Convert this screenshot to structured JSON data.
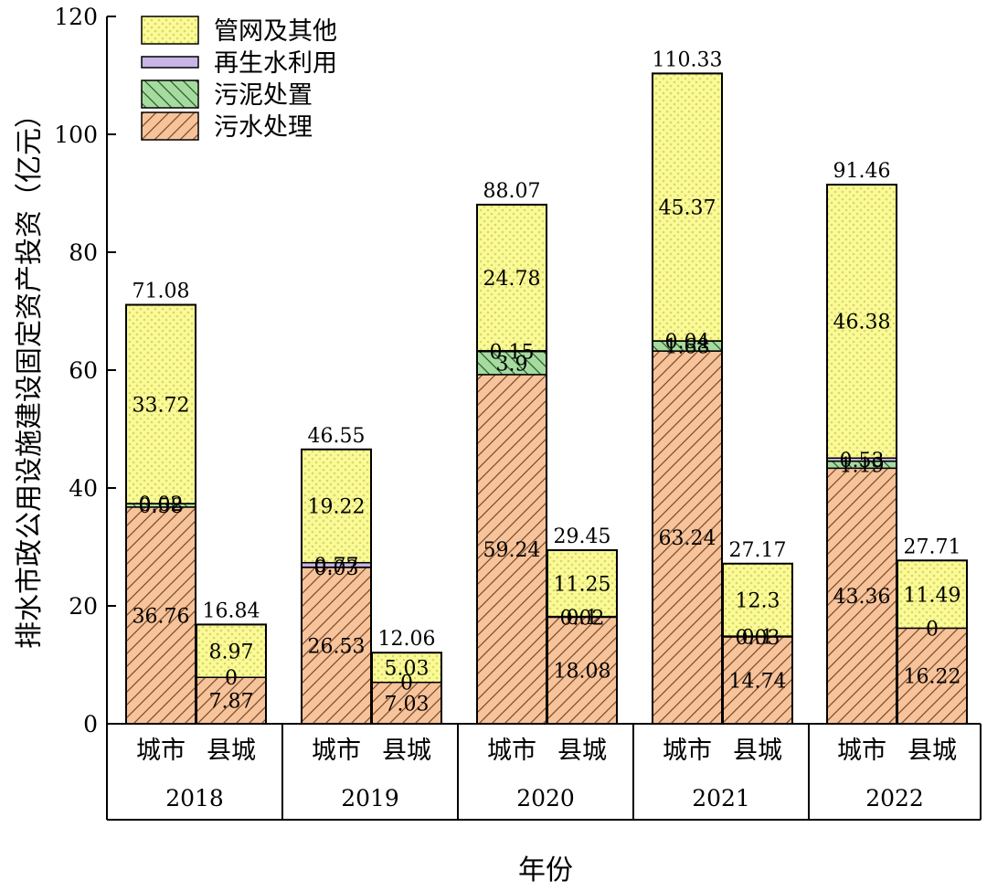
{
  "chart_data": {
    "type": "bar",
    "stacked": true,
    "ylabel": "排水市政公用设施建设固定资产投资（亿元）",
    "xlabel": "年份",
    "ylim": [
      0,
      120
    ],
    "yticks": [
      "0",
      "20",
      "40",
      "60",
      "80",
      "100",
      "120"
    ],
    "ytick_values": [
      0,
      20,
      40,
      60,
      80,
      100,
      120
    ],
    "legend_position": "top-left",
    "years": [
      "2018",
      "2019",
      "2020",
      "2021",
      "2022"
    ],
    "categories": [
      "城市",
      "县城"
    ],
    "series": [
      {
        "name": "污水处理",
        "color": "#f7c39a",
        "pattern": "diagonal-hatch"
      },
      {
        "name": "污泥处置",
        "color": "#a6dba0",
        "pattern": "diagonal-hatch"
      },
      {
        "name": "再生水利用",
        "color": "#c8b4e6",
        "pattern": "solid"
      },
      {
        "name": "管网及其他",
        "color": "#fafa96",
        "pattern": "dots"
      }
    ],
    "legend_order": [
      "管网及其他",
      "再生水利用",
      "污泥处置",
      "污水处理"
    ],
    "bars": [
      {
        "year": "2018",
        "category": "城市",
        "values": [
          36.76,
          0.58,
          0.02,
          33.72
        ],
        "labels": [
          "36.76",
          "0.58",
          "0.02",
          "33.72"
        ],
        "total": 71.08,
        "total_label": "71.08"
      },
      {
        "year": "2018",
        "category": "县城",
        "values": [
          7.87,
          0,
          0,
          8.97
        ],
        "labels": [
          "7.87",
          "0",
          "",
          "8.97"
        ],
        "total": 16.84,
        "total_label": "16.84"
      },
      {
        "year": "2019",
        "category": "城市",
        "values": [
          26.53,
          0.03,
          0.77,
          19.22
        ],
        "labels": [
          "26.53",
          "0.03",
          "0.77",
          "19.22"
        ],
        "total": 46.55,
        "total_label": "46.55"
      },
      {
        "year": "2019",
        "category": "县城",
        "values": [
          7.03,
          0,
          0,
          5.03
        ],
        "labels": [
          "7.03",
          "0",
          "",
          "5.03"
        ],
        "total": 12.06,
        "total_label": "12.06"
      },
      {
        "year": "2020",
        "category": "城市",
        "values": [
          59.24,
          3.9,
          0.15,
          24.78
        ],
        "labels": [
          "59.24",
          "3.9",
          "0.15",
          "24.78"
        ],
        "total": 88.07,
        "total_label": "88.07"
      },
      {
        "year": "2020",
        "category": "县城",
        "values": [
          18.08,
          0.02,
          0.1,
          11.25
        ],
        "labels": [
          "18.08",
          "0.02",
          "0.1",
          "11.25"
        ],
        "total": 29.45,
        "total_label": "29.45"
      },
      {
        "year": "2021",
        "category": "城市",
        "values": [
          63.24,
          1.68,
          0.04,
          45.37
        ],
        "labels": [
          "63.24",
          "1.68",
          "0.04",
          "45.37"
        ],
        "total": 110.33,
        "total_label": "110.33"
      },
      {
        "year": "2021",
        "category": "县城",
        "values": [
          14.74,
          0.03,
          0.1,
          12.3
        ],
        "labels": [
          "14.74",
          "0.03",
          "0.1",
          "12.3"
        ],
        "total": 27.17,
        "total_label": "27.17"
      },
      {
        "year": "2022",
        "category": "城市",
        "values": [
          43.36,
          1.19,
          0.53,
          46.38
        ],
        "labels": [
          "43.36",
          "1.19",
          "0.53",
          "46.38"
        ],
        "total": 91.46,
        "total_label": "91.46"
      },
      {
        "year": "2022",
        "category": "县城",
        "values": [
          16.22,
          0,
          0,
          11.49
        ],
        "labels": [
          "16.22",
          "0",
          "",
          "11.49"
        ],
        "total": 27.71,
        "total_label": "27.71"
      }
    ]
  }
}
